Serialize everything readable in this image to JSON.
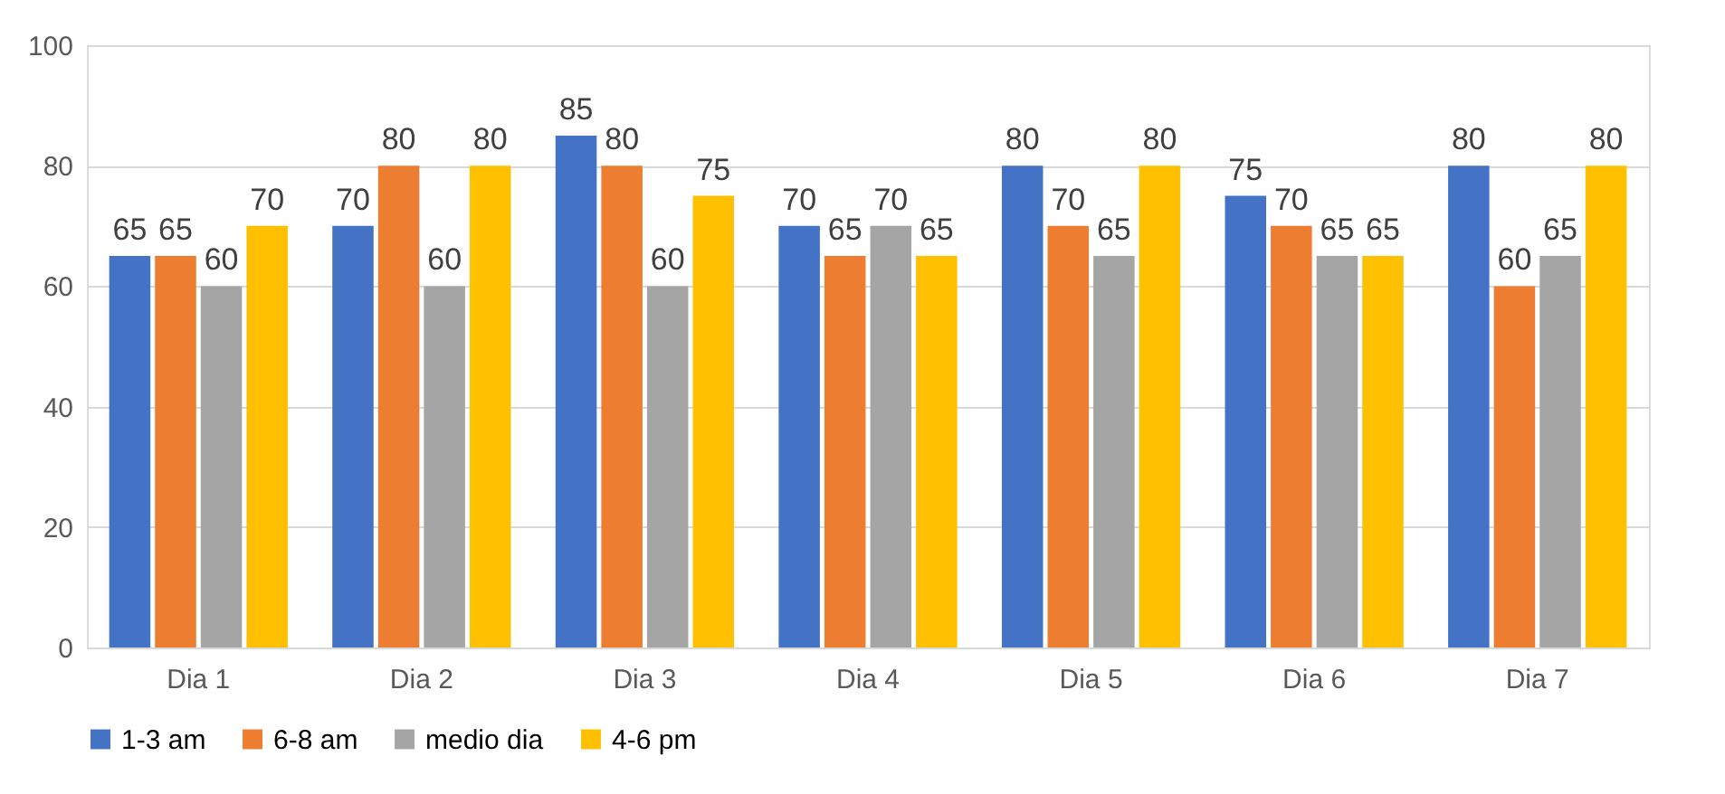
{
  "chart_data": {
    "type": "bar",
    "categories": [
      "Dia 1",
      "Dia 2",
      "Dia 3",
      "Dia 4",
      "Dia 5",
      "Dia 6",
      "Dia 7"
    ],
    "series": [
      {
        "name": "1-3 am",
        "color": "#4472c4",
        "values": [
          65,
          70,
          85,
          70,
          80,
          75,
          80
        ]
      },
      {
        "name": "6-8 am",
        "color": "#ed7d31",
        "values": [
          65,
          80,
          80,
          65,
          70,
          70,
          60
        ]
      },
      {
        "name": "medio dia",
        "color": "#a5a5a5",
        "values": [
          60,
          60,
          60,
          70,
          65,
          65,
          65
        ]
      },
      {
        "name": "4-6 pm",
        "color": "#ffc000",
        "values": [
          70,
          80,
          75,
          65,
          80,
          65,
          80
        ]
      }
    ],
    "ylim": [
      0,
      100
    ],
    "yticks": [
      0,
      20,
      40,
      60,
      80,
      100
    ],
    "grid": "y",
    "legend": "bottom",
    "data_labels": true
  }
}
